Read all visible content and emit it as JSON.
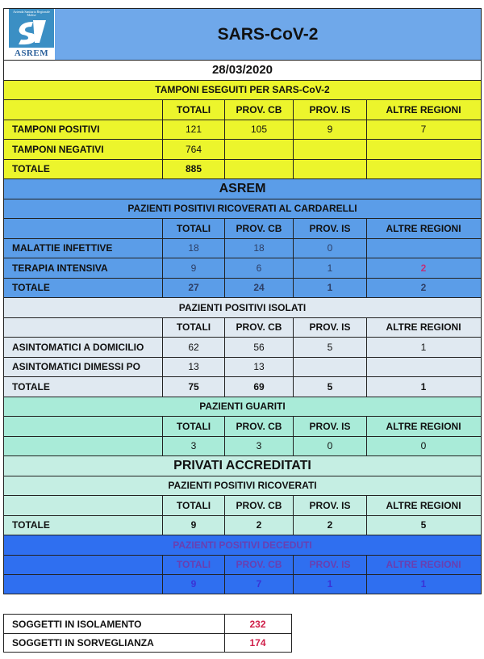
{
  "header": {
    "title": "SARS-CoV-2",
    "logo_text": "ASREM",
    "logo_small": "Azienda Sanitaria Regionale Molise",
    "date": "28/03/2020"
  },
  "colors": {
    "header_blue": "#6fa8ea",
    "yellow": "#ecf52c",
    "asrem_blue": "#5b9de8",
    "guariti_teal": "#a9ebd8",
    "deceduti_blue": "#2f6ff0",
    "highlight_red": "#d0204a",
    "highlight_magenta": "#c0307a"
  },
  "sections": [
    {
      "style": "yellow",
      "banner": "",
      "title": "TAMPONI ESEGUITI PER SARS-CoV-2",
      "columns": [
        "TOTALI",
        "PROV. CB",
        "PROV. IS",
        "ALTRE REGIONI"
      ],
      "rows": [
        {
          "label": "TAMPONI POSITIVI",
          "values": [
            "121",
            "105",
            "9",
            "7"
          ]
        },
        {
          "label": "TAMPONI NEGATIVI",
          "values": [
            "764",
            "",
            "",
            ""
          ]
        },
        {
          "label": "TOTALE",
          "values": [
            "885",
            "",
            "",
            ""
          ],
          "total": true
        }
      ]
    },
    {
      "style": "asrem",
      "banner": "ASREM",
      "title": "PAZIENTI POSITIVI RICOVERATI AL CARDARELLI",
      "columns": [
        "TOTALI",
        "PROV. CB",
        "PROV. IS",
        "ALTRE REGIONI"
      ],
      "rows": [
        {
          "label": "MALATTIE INFETTIVE",
          "values": [
            "18",
            "18",
            "0",
            ""
          ]
        },
        {
          "label": "TERAPIA INTENSIVA",
          "values": [
            "9",
            "6",
            "1",
            "2"
          ],
          "highlight": 3
        },
        {
          "label": "TOTALE",
          "values": [
            "27",
            "24",
            "1",
            "2"
          ],
          "total": true
        }
      ]
    },
    {
      "style": "isolati",
      "banner": "",
      "title": "PAZIENTI POSITIVI ISOLATI",
      "columns": [
        "TOTALI",
        "PROV. CB",
        "PROV. IS",
        "ALTRE REGIONI"
      ],
      "rows": [
        {
          "label": "ASINTOMATICI A DOMICILIO",
          "values": [
            "62",
            "56",
            "5",
            "1"
          ]
        },
        {
          "label": "ASINTOMATICI DIMESSI PO",
          "values": [
            "13",
            "13",
            "",
            ""
          ]
        },
        {
          "label": "TOTALE",
          "values": [
            "75",
            "69",
            "5",
            "1"
          ],
          "total": true
        }
      ]
    },
    {
      "style": "guariti",
      "banner": "",
      "title": "PAZIENTI GUARITI",
      "columns": [
        "TOTALI",
        "PROV. CB",
        "PROV. IS",
        "ALTRE REGIONI"
      ],
      "rows": [
        {
          "label": "",
          "values": [
            "3",
            "3",
            "0",
            "0"
          ]
        }
      ]
    },
    {
      "style": "privati",
      "banner": "PRIVATI ACCREDITATI",
      "title": "PAZIENTI POSITIVI RICOVERATI",
      "columns": [
        "TOTALI",
        "PROV. CB",
        "PROV. IS",
        "ALTRE REGIONI"
      ],
      "rows": [
        {
          "label": "TOTALE",
          "values": [
            "9",
            "2",
            "2",
            "5"
          ],
          "total": true
        }
      ]
    },
    {
      "style": "deceduti",
      "banner": "",
      "title": "PAZIENTI POSITIVI DECEDUTI",
      "columns": [
        "TOTALI",
        "PROV. CB",
        "PROV. IS",
        "ALTRE REGIONI"
      ],
      "rows": [
        {
          "label": "",
          "values": [
            "9",
            "7",
            "1",
            "1"
          ],
          "total": true
        }
      ]
    }
  ],
  "summary": [
    {
      "label": "SOGGETTI IN ISOLAMENTO",
      "value": "232"
    },
    {
      "label": "SOGGETTI IN SORVEGLIANZA",
      "value": "174"
    }
  ]
}
